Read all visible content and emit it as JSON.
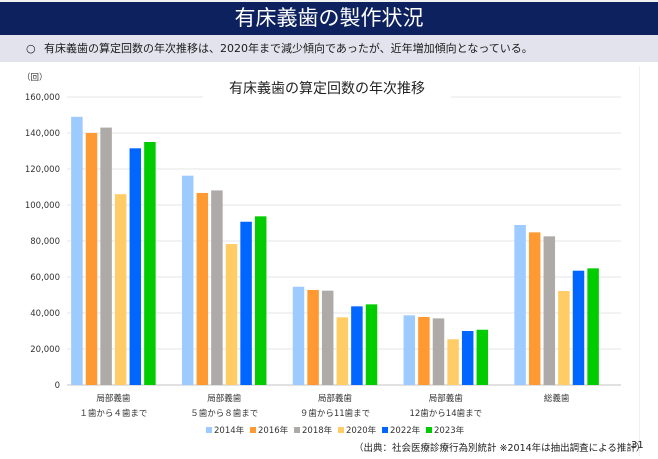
{
  "header": {
    "title": "有床義歯の製作状況"
  },
  "summary": {
    "bullet": "○",
    "text": "有床義歯の算定回数の年次推移は、2020年まで減少傾向であったが、近年増加傾向となっている。"
  },
  "chart_data": {
    "type": "bar",
    "title": "有床義歯の算定回数の年次推移",
    "ylabel": "（回）",
    "xlabel": "",
    "ylim": [
      0,
      160000
    ],
    "yticks": [
      0,
      20000,
      40000,
      60000,
      80000,
      100000,
      120000,
      140000,
      160000
    ],
    "ytick_labels": [
      "0",
      "20,000",
      "40,000",
      "60,000",
      "80,000",
      "100,000",
      "120,000",
      "140,000",
      "160,000"
    ],
    "grid": true,
    "legend_position": "bottom",
    "categories": [
      [
        "局部義歯",
        "１歯から４歯まで"
      ],
      [
        "局部義歯",
        "５歯から８歯まで"
      ],
      [
        "局部義歯",
        "９歯から11歯まで"
      ],
      [
        "局部義歯",
        "12歯から14歯まで"
      ],
      [
        "総義歯",
        ""
      ]
    ],
    "series": [
      {
        "name": "2014年",
        "color": "#9ecbff",
        "values": [
          149000,
          116300,
          54600,
          38700,
          88900
        ]
      },
      {
        "name": "2016年",
        "color": "#ff9a33",
        "values": [
          140000,
          106700,
          52800,
          37800,
          84800
        ]
      },
      {
        "name": "2018年",
        "color": "#aeaaa8",
        "values": [
          143000,
          108100,
          52400,
          37000,
          82600
        ]
      },
      {
        "name": "2020年",
        "color": "#ffcc66",
        "values": [
          106000,
          78300,
          37600,
          25400,
          52200
        ]
      },
      {
        "name": "2022年",
        "color": "#0066ff",
        "values": [
          131500,
          90700,
          43700,
          30000,
          63500
        ]
      },
      {
        "name": "2023年",
        "color": "#00cc00",
        "values": [
          135000,
          93700,
          44800,
          30700,
          64800
        ]
      }
    ]
  },
  "footer": {
    "source": "（出典：社会医療診療行為別統計 ※2014年は抽出調査による推計）",
    "page": "31"
  }
}
